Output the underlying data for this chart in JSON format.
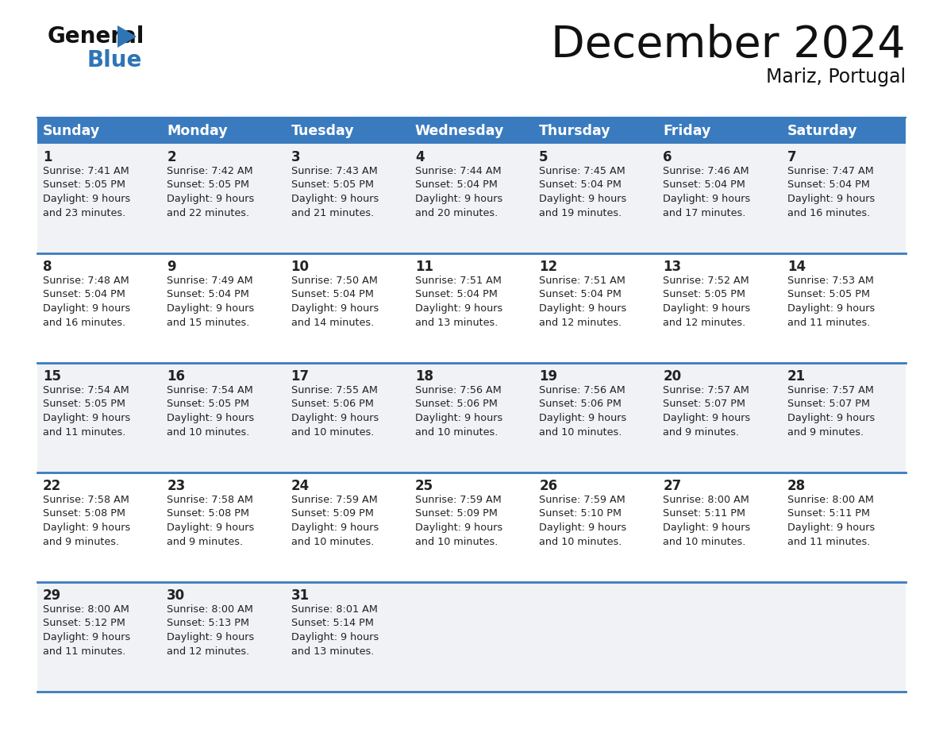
{
  "title": "December 2024",
  "subtitle": "Mariz, Portugal",
  "header_color": "#3a7bbf",
  "header_text_color": "#ffffff",
  "row_line_color": "#3a7bbf",
  "text_color": "#222222",
  "days_of_week": [
    "Sunday",
    "Monday",
    "Tuesday",
    "Wednesday",
    "Thursday",
    "Friday",
    "Saturday"
  ],
  "bg_color_a": "#f0f2f5",
  "bg_color_b": "#ffffff",
  "calendar_data": [
    [
      {
        "day": "1",
        "sunrise": "7:41 AM",
        "sunset": "5:05 PM",
        "daylight_h": "9 hours",
        "daylight_m": "and 23 minutes."
      },
      {
        "day": "2",
        "sunrise": "7:42 AM",
        "sunset": "5:05 PM",
        "daylight_h": "9 hours",
        "daylight_m": "and 22 minutes."
      },
      {
        "day": "3",
        "sunrise": "7:43 AM",
        "sunset": "5:05 PM",
        "daylight_h": "9 hours",
        "daylight_m": "and 21 minutes."
      },
      {
        "day": "4",
        "sunrise": "7:44 AM",
        "sunset": "5:04 PM",
        "daylight_h": "9 hours",
        "daylight_m": "and 20 minutes."
      },
      {
        "day": "5",
        "sunrise": "7:45 AM",
        "sunset": "5:04 PM",
        "daylight_h": "9 hours",
        "daylight_m": "and 19 minutes."
      },
      {
        "day": "6",
        "sunrise": "7:46 AM",
        "sunset": "5:04 PM",
        "daylight_h": "9 hours",
        "daylight_m": "and 17 minutes."
      },
      {
        "day": "7",
        "sunrise": "7:47 AM",
        "sunset": "5:04 PM",
        "daylight_h": "9 hours",
        "daylight_m": "and 16 minutes."
      }
    ],
    [
      {
        "day": "8",
        "sunrise": "7:48 AM",
        "sunset": "5:04 PM",
        "daylight_h": "9 hours",
        "daylight_m": "and 16 minutes."
      },
      {
        "day": "9",
        "sunrise": "7:49 AM",
        "sunset": "5:04 PM",
        "daylight_h": "9 hours",
        "daylight_m": "and 15 minutes."
      },
      {
        "day": "10",
        "sunrise": "7:50 AM",
        "sunset": "5:04 PM",
        "daylight_h": "9 hours",
        "daylight_m": "and 14 minutes."
      },
      {
        "day": "11",
        "sunrise": "7:51 AM",
        "sunset": "5:04 PM",
        "daylight_h": "9 hours",
        "daylight_m": "and 13 minutes."
      },
      {
        "day": "12",
        "sunrise": "7:51 AM",
        "sunset": "5:04 PM",
        "daylight_h": "9 hours",
        "daylight_m": "and 12 minutes."
      },
      {
        "day": "13",
        "sunrise": "7:52 AM",
        "sunset": "5:05 PM",
        "daylight_h": "9 hours",
        "daylight_m": "and 12 minutes."
      },
      {
        "day": "14",
        "sunrise": "7:53 AM",
        "sunset": "5:05 PM",
        "daylight_h": "9 hours",
        "daylight_m": "and 11 minutes."
      }
    ],
    [
      {
        "day": "15",
        "sunrise": "7:54 AM",
        "sunset": "5:05 PM",
        "daylight_h": "9 hours",
        "daylight_m": "and 11 minutes."
      },
      {
        "day": "16",
        "sunrise": "7:54 AM",
        "sunset": "5:05 PM",
        "daylight_h": "9 hours",
        "daylight_m": "and 10 minutes."
      },
      {
        "day": "17",
        "sunrise": "7:55 AM",
        "sunset": "5:06 PM",
        "daylight_h": "9 hours",
        "daylight_m": "and 10 minutes."
      },
      {
        "day": "18",
        "sunrise": "7:56 AM",
        "sunset": "5:06 PM",
        "daylight_h": "9 hours",
        "daylight_m": "and 10 minutes."
      },
      {
        "day": "19",
        "sunrise": "7:56 AM",
        "sunset": "5:06 PM",
        "daylight_h": "9 hours",
        "daylight_m": "and 10 minutes."
      },
      {
        "day": "20",
        "sunrise": "7:57 AM",
        "sunset": "5:07 PM",
        "daylight_h": "9 hours",
        "daylight_m": "and 9 minutes."
      },
      {
        "day": "21",
        "sunrise": "7:57 AM",
        "sunset": "5:07 PM",
        "daylight_h": "9 hours",
        "daylight_m": "and 9 minutes."
      }
    ],
    [
      {
        "day": "22",
        "sunrise": "7:58 AM",
        "sunset": "5:08 PM",
        "daylight_h": "9 hours",
        "daylight_m": "and 9 minutes."
      },
      {
        "day": "23",
        "sunrise": "7:58 AM",
        "sunset": "5:08 PM",
        "daylight_h": "9 hours",
        "daylight_m": "and 9 minutes."
      },
      {
        "day": "24",
        "sunrise": "7:59 AM",
        "sunset": "5:09 PM",
        "daylight_h": "9 hours",
        "daylight_m": "and 10 minutes."
      },
      {
        "day": "25",
        "sunrise": "7:59 AM",
        "sunset": "5:09 PM",
        "daylight_h": "9 hours",
        "daylight_m": "and 10 minutes."
      },
      {
        "day": "26",
        "sunrise": "7:59 AM",
        "sunset": "5:10 PM",
        "daylight_h": "9 hours",
        "daylight_m": "and 10 minutes."
      },
      {
        "day": "27",
        "sunrise": "8:00 AM",
        "sunset": "5:11 PM",
        "daylight_h": "9 hours",
        "daylight_m": "and 10 minutes."
      },
      {
        "day": "28",
        "sunrise": "8:00 AM",
        "sunset": "5:11 PM",
        "daylight_h": "9 hours",
        "daylight_m": "and 11 minutes."
      }
    ],
    [
      {
        "day": "29",
        "sunrise": "8:00 AM",
        "sunset": "5:12 PM",
        "daylight_h": "9 hours",
        "daylight_m": "and 11 minutes."
      },
      {
        "day": "30",
        "sunrise": "8:00 AM",
        "sunset": "5:13 PM",
        "daylight_h": "9 hours",
        "daylight_m": "and 12 minutes."
      },
      {
        "day": "31",
        "sunrise": "8:01 AM",
        "sunset": "5:14 PM",
        "daylight_h": "9 hours",
        "daylight_m": "and 13 minutes."
      },
      null,
      null,
      null,
      null
    ]
  ]
}
